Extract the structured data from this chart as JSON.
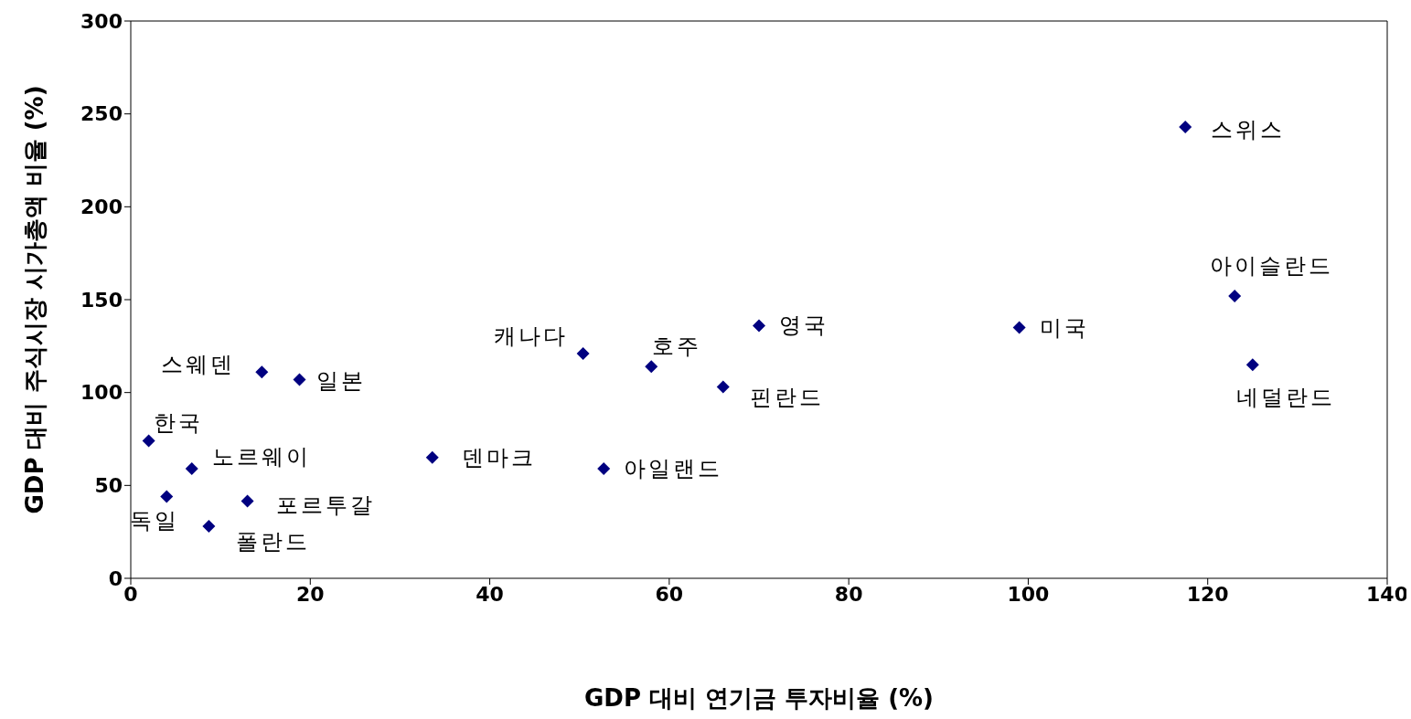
{
  "chart_data": {
    "type": "scatter",
    "xlabel": "GDP 대비 연기금 투자비율 (%)",
    "ylabel": "GDP 대비 주식시장 시가총액 비율 (%)",
    "x": [
      117.5,
      123,
      125,
      99,
      70,
      66,
      58,
      50.4,
      52.7,
      33.6,
      18.8,
      14.6,
      2,
      6.8,
      4,
      13,
      8.7
    ],
    "series": [
      {
        "color": "#000080",
        "values": [
          243,
          152,
          115,
          135,
          136,
          103,
          114,
          121,
          59,
          65,
          107,
          111,
          74,
          59,
          44,
          41.5,
          28
        ]
      }
    ],
    "xlim": [
      0,
      140
    ],
    "xticks": [
      0,
      20,
      40,
      60,
      80,
      100,
      120,
      140
    ],
    "ylim": [
      0,
      300
    ],
    "yticks": [
      0,
      50,
      100,
      150,
      200,
      250,
      300
    ],
    "marker": "diamond",
    "grid": false,
    "legend": false,
    "annotations": [
      {
        "text": "스위스",
        "x": 117.5,
        "y": 243
      },
      {
        "text": "아이슬란드",
        "x": 123,
        "y": 152
      },
      {
        "text": "네덜란드",
        "x": 125,
        "y": 115
      },
      {
        "text": "미국",
        "x": 99,
        "y": 135
      },
      {
        "text": "영국",
        "x": 70,
        "y": 136
      },
      {
        "text": "핀란드",
        "x": 66,
        "y": 103
      },
      {
        "text": "호주",
        "x": 58,
        "y": 114
      },
      {
        "text": "캐나다",
        "x": 50.4,
        "y": 121
      },
      {
        "text": "아일랜드",
        "x": 52.7,
        "y": 59
      },
      {
        "text": "덴마크",
        "x": 33.6,
        "y": 65
      },
      {
        "text": "일본",
        "x": 18.8,
        "y": 107
      },
      {
        "text": "스웨덴",
        "x": 14.6,
        "y": 111
      },
      {
        "text": "한국",
        "x": 2,
        "y": 74
      },
      {
        "text": "노르웨이",
        "x": 6.8,
        "y": 59
      },
      {
        "text": "독일",
        "x": 4,
        "y": 44
      },
      {
        "text": "포르투갈",
        "x": 13,
        "y": 41.5
      },
      {
        "text": "폴란드",
        "x": 8.7,
        "y": 28
      }
    ]
  }
}
